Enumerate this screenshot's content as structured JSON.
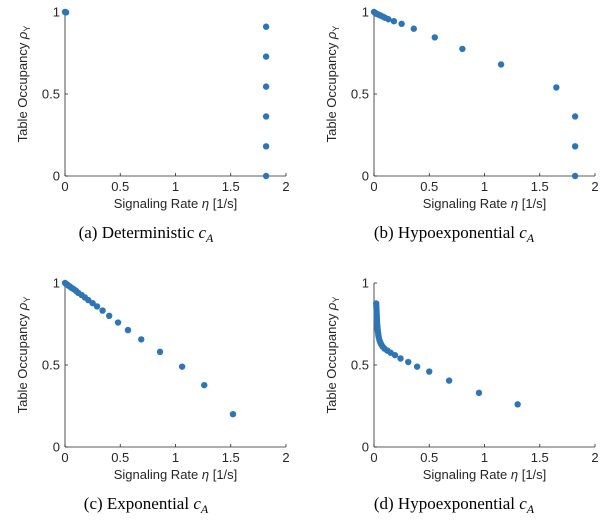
{
  "marker_color": "#2e75b6",
  "axis_color": "#262626",
  "chart_data": [
    {
      "id": "a",
      "type": "scatter",
      "caption": "(a) Deterministic ",
      "caption_math": "c",
      "caption_sub": "A",
      "xlabel": "Signaling Rate ",
      "xlabel_math": "η",
      "xlabel_unit": " [1/s]",
      "ylabel": "Table Occupancy ",
      "ylabel_math": "ρ",
      "ylabel_sub": "Y",
      "xlim": [
        0,
        2
      ],
      "ylim": [
        0,
        1
      ],
      "xticks": [
        "0",
        "0.5",
        "1",
        "1.5",
        "2"
      ],
      "yticks": [
        "0",
        "0.5",
        "1"
      ],
      "points": [
        [
          0,
          1.0
        ],
        [
          0.005,
          0.999
        ],
        [
          0.01,
          0.998
        ],
        [
          1.82,
          0.91
        ],
        [
          1.82,
          0.728
        ],
        [
          1.82,
          0.545
        ],
        [
          1.82,
          0.363
        ],
        [
          1.82,
          0.181
        ],
        [
          1.82,
          0.0
        ]
      ]
    },
    {
      "id": "b",
      "type": "scatter",
      "caption": "(b) Hypoexponential ",
      "caption_math": "c",
      "caption_sub": "A",
      "xlabel": "Signaling Rate ",
      "xlabel_math": "η",
      "xlabel_unit": " [1/s]",
      "ylabel": "Table Occupancy ",
      "ylabel_math": "ρ",
      "ylabel_sub": "Y",
      "xlim": [
        0,
        2
      ],
      "ylim": [
        0,
        1
      ],
      "xticks": [
        "0",
        "0.5",
        "1",
        "1.5",
        "2"
      ],
      "yticks": [
        "0",
        "0.5",
        "1"
      ],
      "points": [
        [
          0.0,
          1.0
        ],
        [
          0.01,
          0.995
        ],
        [
          0.02,
          0.99
        ],
        [
          0.03,
          0.987
        ],
        [
          0.045,
          0.983
        ],
        [
          0.06,
          0.978
        ],
        [
          0.08,
          0.972
        ],
        [
          0.1,
          0.965
        ],
        [
          0.13,
          0.956
        ],
        [
          0.18,
          0.944
        ],
        [
          0.25,
          0.928
        ],
        [
          0.36,
          0.898
        ],
        [
          0.55,
          0.845
        ],
        [
          0.8,
          0.775
        ],
        [
          1.15,
          0.68
        ],
        [
          1.65,
          0.54
        ],
        [
          1.82,
          0.363
        ],
        [
          1.82,
          0.181
        ],
        [
          1.82,
          0.0
        ]
      ]
    },
    {
      "id": "c",
      "type": "scatter",
      "caption": "(c) Exponential ",
      "caption_math": "c",
      "caption_sub": "A",
      "xlabel": "Signaling Rate ",
      "xlabel_math": "η",
      "xlabel_unit": " [1/s]",
      "ylabel": "Table Occupancy ",
      "ylabel_math": "ρ",
      "ylabel_sub": "Y",
      "xlim": [
        0,
        2
      ],
      "ylim": [
        0,
        1
      ],
      "xticks": [
        "0",
        "0.5",
        "1",
        "1.5",
        "2"
      ],
      "yticks": [
        "0",
        "0.5",
        "1"
      ],
      "points": [
        [
          0.0,
          1.0
        ],
        [
          0.01,
          0.995
        ],
        [
          0.02,
          0.99
        ],
        [
          0.03,
          0.985
        ],
        [
          0.045,
          0.978
        ],
        [
          0.06,
          0.97
        ],
        [
          0.08,
          0.962
        ],
        [
          0.1,
          0.952
        ],
        [
          0.12,
          0.94
        ],
        [
          0.15,
          0.927
        ],
        [
          0.18,
          0.912
        ],
        [
          0.21,
          0.896
        ],
        [
          0.25,
          0.877
        ],
        [
          0.29,
          0.857
        ],
        [
          0.34,
          0.832
        ],
        [
          0.4,
          0.8
        ],
        [
          0.48,
          0.759
        ],
        [
          0.57,
          0.713
        ],
        [
          0.69,
          0.656
        ],
        [
          0.86,
          0.58
        ],
        [
          1.06,
          0.49
        ],
        [
          1.26,
          0.377
        ],
        [
          1.52,
          0.2
        ]
      ]
    },
    {
      "id": "d",
      "type": "scatter",
      "caption": "(d) Hypoexponential ",
      "caption_math": "c",
      "caption_sub": "A",
      "xlabel": "Signaling Rate ",
      "xlabel_math": "η",
      "xlabel_unit": " [1/s]",
      "ylabel": "Table Occupancy ",
      "ylabel_math": "ρ",
      "ylabel_sub": "Y",
      "xlim": [
        0,
        2
      ],
      "ylim": [
        0,
        1
      ],
      "xticks": [
        "0",
        "0.5",
        "1",
        "1.5",
        "2"
      ],
      "yticks": [
        "0",
        "0.5",
        "1"
      ],
      "points": [
        [
          0.02,
          0.875
        ],
        [
          0.021,
          0.86
        ],
        [
          0.022,
          0.845
        ],
        [
          0.023,
          0.83
        ],
        [
          0.024,
          0.815
        ],
        [
          0.025,
          0.8
        ],
        [
          0.026,
          0.785
        ],
        [
          0.027,
          0.77
        ],
        [
          0.028,
          0.755
        ],
        [
          0.03,
          0.74
        ],
        [
          0.032,
          0.725
        ],
        [
          0.034,
          0.71
        ],
        [
          0.037,
          0.695
        ],
        [
          0.04,
          0.68
        ],
        [
          0.044,
          0.665
        ],
        [
          0.05,
          0.65
        ],
        [
          0.057,
          0.638
        ],
        [
          0.066,
          0.625
        ],
        [
          0.078,
          0.612
        ],
        [
          0.095,
          0.6
        ],
        [
          0.12,
          0.588
        ],
        [
          0.15,
          0.575
        ],
        [
          0.19,
          0.56
        ],
        [
          0.24,
          0.54
        ],
        [
          0.31,
          0.518
        ],
        [
          0.39,
          0.49
        ],
        [
          0.5,
          0.46
        ],
        [
          0.68,
          0.405
        ],
        [
          0.95,
          0.33
        ],
        [
          1.3,
          0.26
        ]
      ]
    }
  ]
}
